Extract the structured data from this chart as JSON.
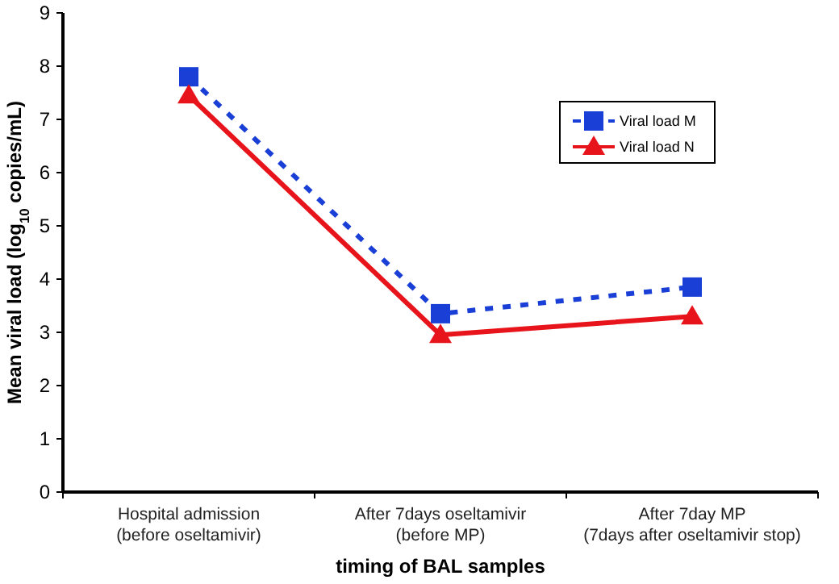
{
  "chart_data": {
    "type": "line",
    "xlabel": "timing of BAL samples",
    "ylabel": "Mean viral load (log$_{10}$ copies/mL)",
    "categories": [
      "Hospital admission\n(before oseltamivir)",
      "After 7days oseltamivir\n(before MP)",
      "After 7day MP\n(7days after oseltamivir stop)"
    ],
    "series": [
      {
        "name": "Viral load M",
        "color": "#1a3fd6",
        "values": [
          7.8,
          3.35,
          3.85
        ],
        "marker": "square",
        "line_style": "dashed"
      },
      {
        "name": "Viral load N",
        "color": "#e8141b",
        "values": [
          7.45,
          2.95,
          3.3
        ],
        "marker": "triangle",
        "line_style": "solid"
      }
    ],
    "ylim": [
      0,
      9
    ],
    "yticks": [
      0,
      1,
      2,
      3,
      4,
      5,
      6,
      7,
      8,
      9
    ],
    "grid": false,
    "legend": "top right"
  }
}
